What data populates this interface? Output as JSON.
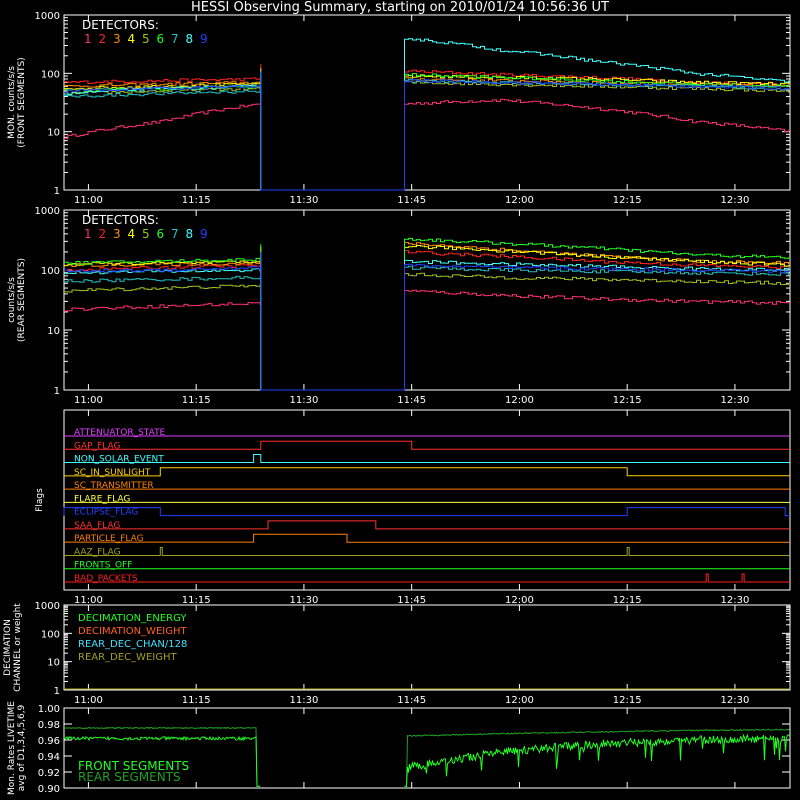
{
  "title": "HESSI Observing Summary, starting on 2010/01/24 10:56:36 UT",
  "time_ticks": [
    "11:00",
    "11:15",
    "11:30",
    "11:45",
    "12:00",
    "12:15",
    "12:30"
  ],
  "detectors": {
    "heading": "DETECTORS:",
    "labels": [
      "1",
      "2",
      "3",
      "4",
      "5",
      "6",
      "7",
      "8",
      "9"
    ],
    "colors": [
      "#ff3070",
      "#ff2020",
      "#ff8c00",
      "#ffff00",
      "#a0c020",
      "#20ff20",
      "#20c0c0",
      "#40ffff",
      "#2040ff"
    ]
  },
  "chart_data": [
    {
      "type": "line",
      "name": "front-rates",
      "ylabel": "MON. counts/s/s\n(FRONT SEGMENTS)",
      "yscale": "log",
      "ylim": [
        1,
        1000
      ],
      "ytick_labels": [
        "1",
        "10",
        "100",
        "1000"
      ],
      "x_range": [
        "10:56:36",
        "12:37"
      ],
      "data_gap": [
        "11:24",
        "11:44"
      ],
      "series": [
        {
          "name": "1",
          "color": "#ff3070",
          "values_before_gap": [
            8,
            15,
            30
          ],
          "values_after_gap": [
            30,
            35,
            25,
            15,
            10
          ]
        },
        {
          "name": "2",
          "color": "#ff2020",
          "values_before_gap": [
            70,
            75,
            80
          ],
          "values_after_gap": [
            110,
            95,
            85,
            70,
            65
          ]
        },
        {
          "name": "3",
          "color": "#ff8c00",
          "values_before_gap": [
            60,
            65,
            70
          ],
          "values_after_gap": [
            80,
            75,
            70,
            65,
            60
          ]
        },
        {
          "name": "4",
          "color": "#ffff00",
          "values_before_gap": [
            55,
            60,
            65
          ],
          "values_after_gap": [
            90,
            85,
            80,
            70,
            65
          ]
        },
        {
          "name": "5",
          "color": "#a0c020",
          "values_before_gap": [
            45,
            50,
            55
          ],
          "values_after_gap": [
            70,
            65,
            60,
            55,
            50
          ]
        },
        {
          "name": "6",
          "color": "#20ff20",
          "values_before_gap": [
            50,
            55,
            60
          ],
          "values_after_gap": [
            95,
            85,
            75,
            65,
            60
          ]
        },
        {
          "name": "7",
          "color": "#20c0c0",
          "values_before_gap": [
            40,
            45,
            50
          ],
          "values_after_gap": [
            75,
            70,
            65,
            60,
            55
          ]
        },
        {
          "name": "8",
          "color": "#40ffff",
          "values_before_gap": [
            45,
            55,
            60
          ],
          "values_after_gap": [
            400,
            250,
            160,
            100,
            70
          ]
        },
        {
          "name": "9",
          "color": "#2040ff",
          "values_before_gap": [
            50,
            55,
            60
          ],
          "values_after_gap": [
            75,
            70,
            65,
            60,
            55
          ]
        }
      ]
    },
    {
      "type": "line",
      "name": "rear-rates",
      "ylabel": "counts/s/s\n(REAR SEGMENTS)",
      "yscale": "log",
      "ylim": [
        1,
        1000
      ],
      "ytick_labels": [
        "1",
        "10",
        "100",
        "1000"
      ],
      "x_range": [
        "10:56:36",
        "12:37"
      ],
      "data_gap": [
        "11:24",
        "11:44"
      ],
      "series": [
        {
          "name": "1",
          "color": "#ff3070",
          "values_before_gap": [
            22,
            25,
            28
          ],
          "values_after_gap": [
            45,
            38,
            33,
            30,
            28
          ]
        },
        {
          "name": "2",
          "color": "#ff2020",
          "values_before_gap": [
            100,
            110,
            120
          ],
          "values_after_gap": [
            200,
            170,
            140,
            120,
            110
          ]
        },
        {
          "name": "3",
          "color": "#ff8c00",
          "values_before_gap": [
            120,
            125,
            130
          ],
          "values_after_gap": [
            280,
            220,
            170,
            140,
            130
          ]
        },
        {
          "name": "4",
          "color": "#ffff00",
          "values_before_gap": [
            125,
            130,
            135
          ],
          "values_after_gap": [
            250,
            210,
            170,
            140,
            120
          ]
        },
        {
          "name": "5",
          "color": "#a0c020",
          "values_before_gap": [
            45,
            50,
            55
          ],
          "values_after_gap": [
            85,
            75,
            70,
            65,
            60
          ]
        },
        {
          "name": "6",
          "color": "#20ff20",
          "values_before_gap": [
            130,
            140,
            150
          ],
          "values_after_gap": [
            330,
            280,
            230,
            180,
            160
          ]
        },
        {
          "name": "7",
          "color": "#20c0c0",
          "values_before_gap": [
            65,
            70,
            75
          ],
          "values_after_gap": [
            110,
            100,
            95,
            90,
            85
          ]
        },
        {
          "name": "8",
          "color": "#40ffff",
          "values_before_gap": [
            90,
            95,
            100
          ],
          "values_after_gap": [
            140,
            125,
            115,
            105,
            100
          ]
        },
        {
          "name": "9",
          "color": "#2040ff",
          "values_before_gap": [
            95,
            100,
            110
          ],
          "values_after_gap": [
            120,
            110,
            105,
            100,
            95
          ]
        }
      ]
    },
    {
      "type": "line",
      "name": "flags",
      "ylabel": "Flags",
      "flags": [
        {
          "label": "ATTENUATOR_STATE",
          "color": "#e040ff",
          "high_intervals": []
        },
        {
          "label": "GAP_FLAG",
          "color": "#ff3030",
          "high_intervals": [
            [
              "11:24",
              "11:45"
            ]
          ]
        },
        {
          "label": "NON_SOLAR_EVENT",
          "color": "#40ffff",
          "high_intervals": [
            [
              "11:23",
              "11:24"
            ]
          ]
        },
        {
          "label": "SC_IN_SUNLIGHT",
          "color": "#ffd000",
          "high_intervals": [
            [
              "11:10",
              "12:15"
            ]
          ]
        },
        {
          "label": "SC_TRANSMITTER",
          "color": "#ff8000",
          "high_intervals": []
        },
        {
          "label": "FLARE_FLAG",
          "color": "#ffff40",
          "high_intervals": []
        },
        {
          "label": "ECLIPSE_FLAG",
          "color": "#2040ff",
          "high_intervals": [
            [
              "10:56:36",
              "11:10"
            ],
            [
              "12:15",
              "12:37"
            ]
          ]
        },
        {
          "label": "SAA_FLAG",
          "color": "#ff3030",
          "high_intervals": [
            [
              "11:25",
              "11:40"
            ]
          ]
        },
        {
          "label": "PARTICLE_FLAG",
          "color": "#ff8000",
          "high_intervals": [
            [
              "11:23",
              "11:36"
            ]
          ]
        },
        {
          "label": "AAZ_FLAG",
          "color": "#a0a020",
          "high_intervals": [
            [
              "11:10",
              "11:10"
            ],
            [
              "12:15",
              "12:15"
            ]
          ]
        },
        {
          "label": "FRONTS_OFF",
          "color": "#20ff20",
          "high_intervals": []
        },
        {
          "label": "BAD_PACKETS",
          "color": "#ff2020",
          "high_intervals": [
            [
              "12:26",
              "12:26"
            ],
            [
              "12:31",
              "12:31"
            ]
          ]
        }
      ]
    },
    {
      "type": "line",
      "name": "decimation",
      "ylabel": "DECIMATION\nCHANNEL or weight",
      "yscale": "log",
      "ylim": [
        1,
        1000
      ],
      "ytick_labels": [
        "1",
        "10",
        "100",
        "1000"
      ],
      "series": [
        {
          "name": "DECIMATION_ENERGY",
          "color": "#20ff20"
        },
        {
          "name": "DECIMATION_WEIGHT",
          "color": "#ff6020"
        },
        {
          "name": "REAR_DEC_CHAN/128",
          "color": "#40e0ff"
        },
        {
          "name": "REAR_DEC_WEIGHT",
          "color": "#a0a020"
        }
      ]
    },
    {
      "type": "line",
      "name": "livetime",
      "ylabel": "Mon. Rates LIVETIME\navg of D1,3,4,5,6,9",
      "ylim": [
        0.9,
        1.0
      ],
      "ytick_labels": [
        "0.90",
        "0.92",
        "0.94",
        "0.96",
        "0.98",
        "1.00"
      ],
      "data_gap": [
        "11:24",
        "11:44"
      ],
      "series": [
        {
          "name": "FRONT SEGMENTS",
          "color": "#20ff20",
          "values_before_gap": [
            0.962,
            0.962,
            0.962
          ],
          "values_after_gap": [
            0.925,
            0.945,
            0.955,
            0.96,
            0.962
          ]
        },
        {
          "name": "REAR SEGMENTS",
          "color": "#20a020",
          "values_before_gap": [
            0.975,
            0.975,
            0.975
          ],
          "values_after_gap": [
            0.965,
            0.968,
            0.97,
            0.972,
            0.973
          ]
        }
      ]
    }
  ]
}
